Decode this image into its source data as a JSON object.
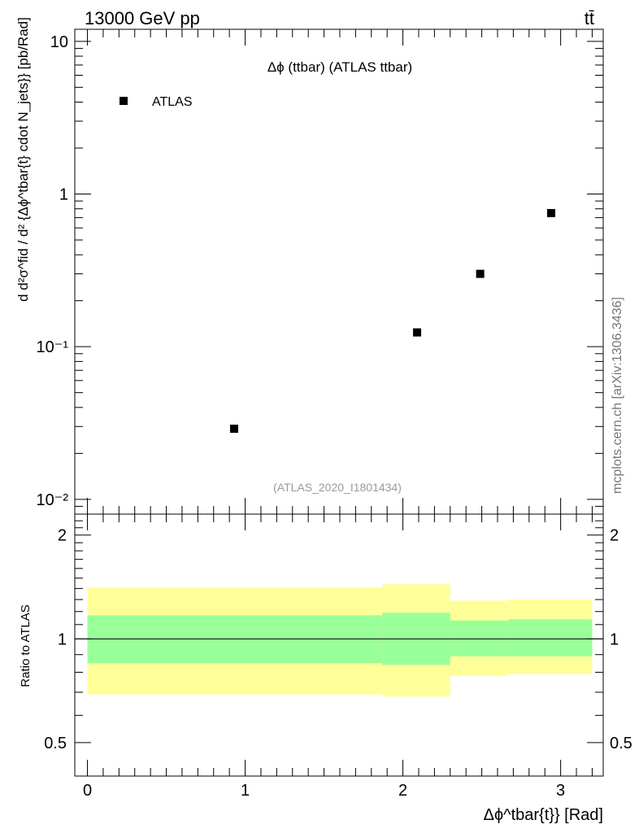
{
  "header": {
    "energy_label": "13000 GeV pp",
    "process_label": "tt̄",
    "side_label": "mcplots.cern.ch [arXiv:1306.3436]"
  },
  "chart_data": [
    {
      "type": "scatter",
      "panel": "main",
      "title": "Δϕ (ttbar) (ATLAS ttbar)",
      "subtitle": "(ATLAS_2020_I1801434)",
      "ylabel": "d d²σ^fid / d² {Δϕ^tbar{t} cdot N_jets}} [pb/Rad]",
      "yscale": "log",
      "ylim": [
        0.008,
        12
      ],
      "xlim": [
        -0.08,
        3.27
      ],
      "y_tick_labels": [
        "10",
        "1",
        "10⁻¹",
        "10⁻²"
      ],
      "y_ticks": [
        10,
        1,
        0.1,
        0.01
      ],
      "legend": {
        "placement": "top-left",
        "entries": [
          "ATLAS"
        ]
      },
      "series": [
        {
          "name": "ATLAS",
          "marker": "square",
          "color": "#000000",
          "x": [
            0.93,
            2.09,
            2.49,
            2.94
          ],
          "y": [
            0.029,
            0.124,
            0.3,
            0.75
          ]
        }
      ]
    },
    {
      "type": "area",
      "panel": "ratio",
      "ylabel": "Ratio to ATLAS",
      "xlabel": "Δϕ^tbar{t}} [Rad]",
      "yscale": "log",
      "ylim": [
        0.4,
        2.3
      ],
      "xlim": [
        -0.08,
        3.27
      ],
      "x_ticks": [
        0,
        1,
        2,
        3
      ],
      "x_tick_labels": [
        "0",
        "1",
        "2",
        "3"
      ],
      "y_ticks": [
        0.5,
        1,
        2
      ],
      "y_tick_labels": [
        "0.5",
        "1",
        "2"
      ],
      "reference_line": 1,
      "bands": {
        "bin_edges": [
          0,
          1.87,
          2.3,
          2.67,
          3.2
        ],
        "outer": {
          "color": "#ffff99",
          "low": [
            0.69,
            0.68,
            0.78,
            0.79
          ],
          "high": [
            1.41,
            1.44,
            1.29,
            1.3
          ]
        },
        "inner": {
          "color": "#99ff99",
          "low": [
            0.85,
            0.84,
            0.89,
            0.89
          ],
          "high": [
            1.17,
            1.19,
            1.13,
            1.14
          ]
        }
      }
    }
  ]
}
